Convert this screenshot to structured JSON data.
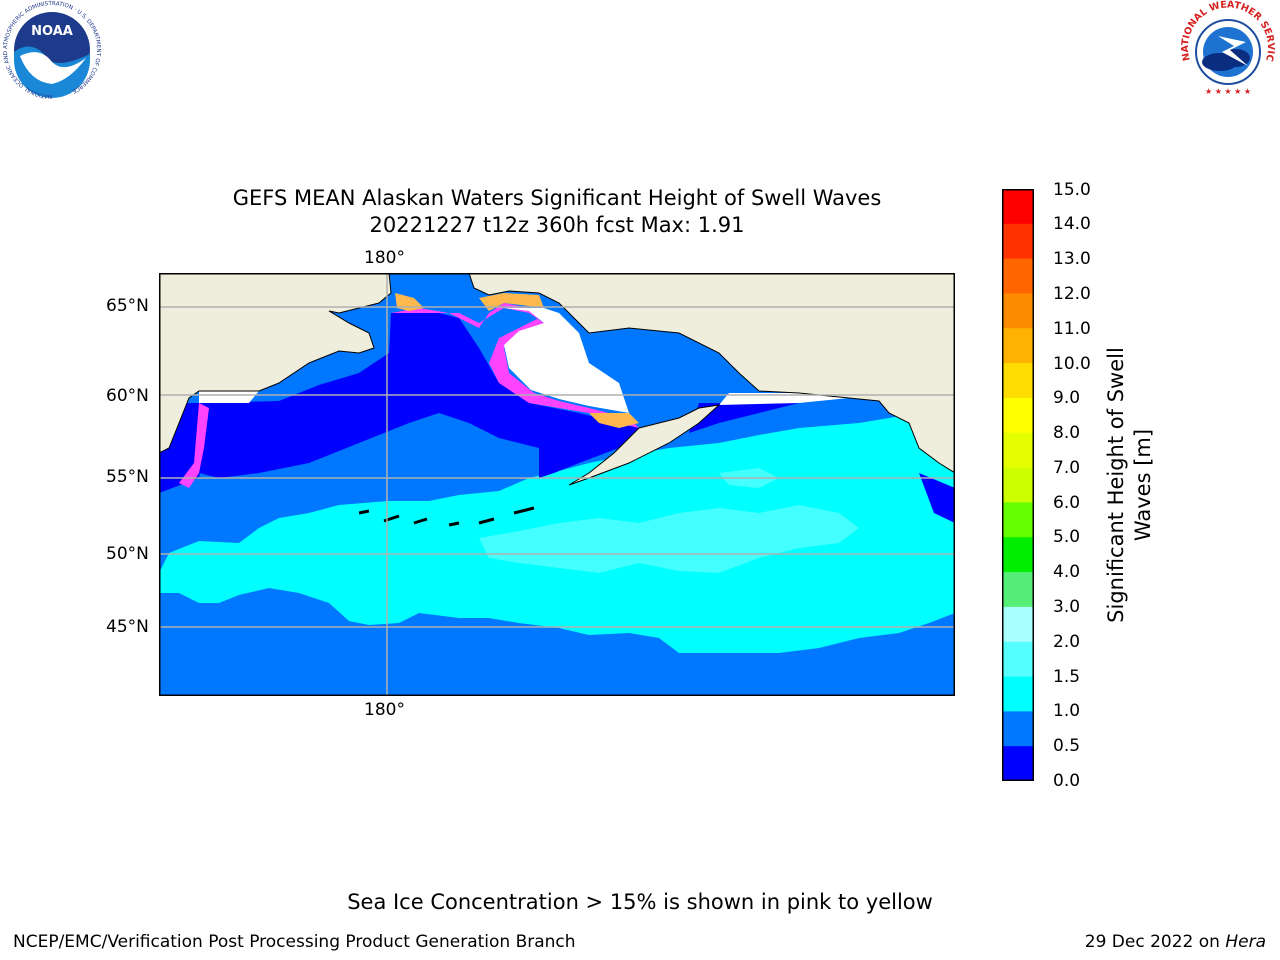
{
  "logos": {
    "noaa": {
      "text": "NOAA",
      "ring_text": "NATIONAL OCEANIC AND ATMOSPHERIC ADMINISTRATION · U.S. DEPARTMENT OF COMMERCE ·"
    },
    "nws": {
      "ring_text": "NATIONAL WEATHER SERVICE"
    }
  },
  "title": {
    "line1": "GEFS MEAN Alaskan Waters Significant Height of Swell Waves",
    "line2": "20221227 t12z 360h fcst   Max: 1.91"
  },
  "map": {
    "lon_label_top": "180°",
    "lon_label_bottom": "180°",
    "lat_labels": [
      "65°N",
      "60°N",
      "55°N",
      "50°N",
      "45°N"
    ],
    "colors": {
      "land": "#efeedc",
      "ice_white": "#ffffff",
      "band_0_05": "#0000ff",
      "band_05_10": "#0077ff",
      "band_10_15": "#00ffff",
      "band_15_20": "#44ffff",
      "ice_pink": "#ff44ff",
      "ice_orange": "#ffb84d",
      "grid": "#b0b0b0"
    }
  },
  "colorbar": {
    "label": "Significant Height of Swell Waves [m]",
    "ticks": [
      "15.0",
      "14.0",
      "13.0",
      "12.0",
      "11.0",
      "10.0",
      "9.0",
      "8.0",
      "7.0",
      "6.0",
      "5.0",
      "4.0",
      "3.0",
      "2.0",
      "1.5",
      "1.0",
      "0.5",
      "0.0"
    ],
    "colors_top_to_bottom": [
      "#ff0000",
      "#ff3300",
      "#ff6600",
      "#ff8c00",
      "#ffb300",
      "#ffdd00",
      "#ffff00",
      "#e6ff00",
      "#ccff00",
      "#66ff00",
      "#00ee00",
      "#55ee77",
      "#aaffff",
      "#55ffff",
      "#00ffff",
      "#0077ff",
      "#0000ff"
    ]
  },
  "note": "Sea Ice Concentration > 15% is shown in pink to yellow",
  "footer": {
    "left": "NCEP/EMC/Verification Post Processing Product Generation Branch",
    "date": "29 Dec 2022 on ",
    "machine": "Hera"
  }
}
